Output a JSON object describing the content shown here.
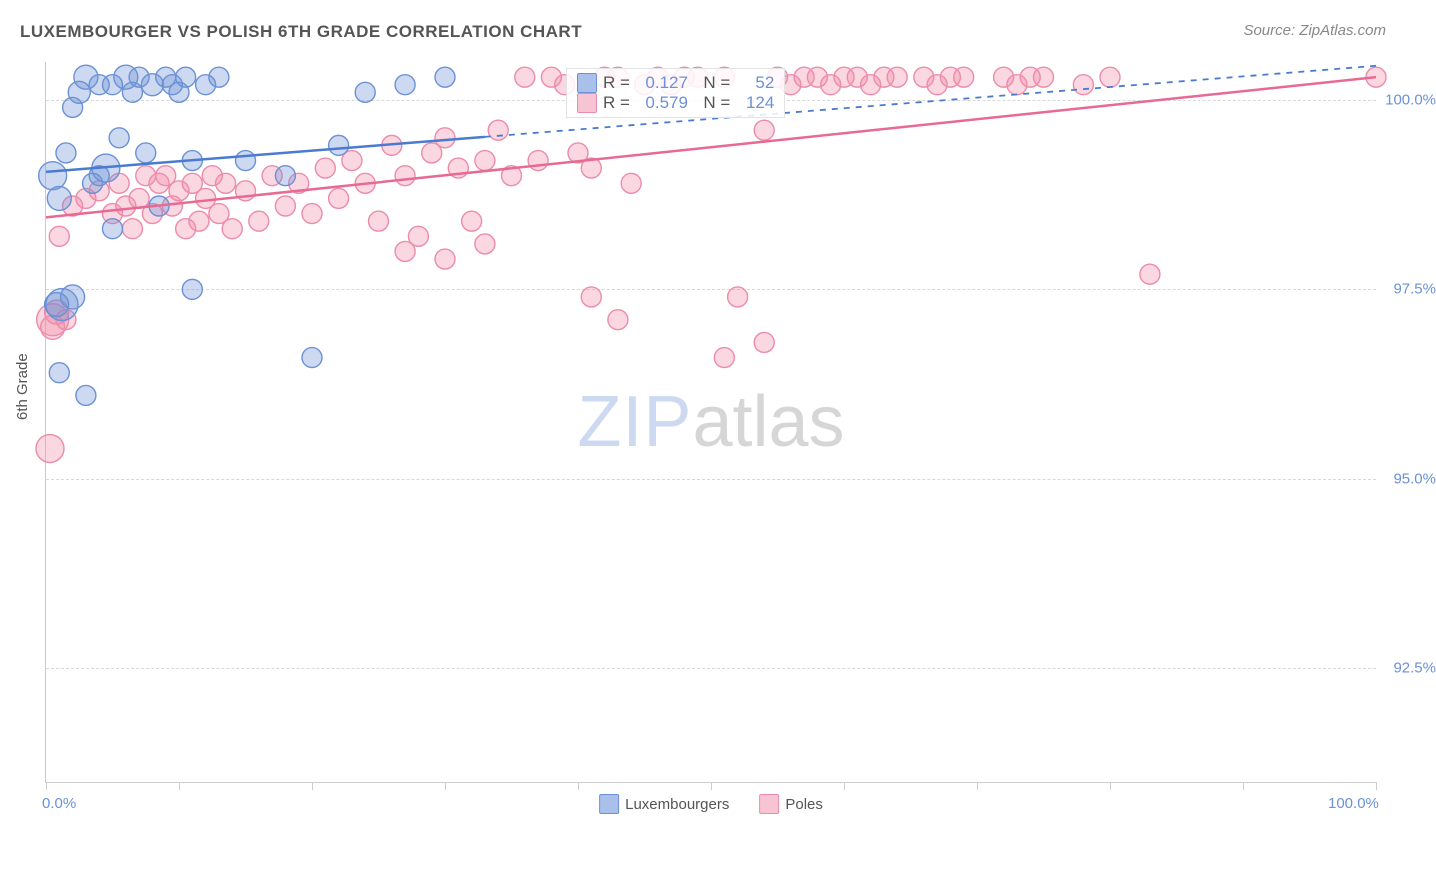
{
  "title": "LUXEMBOURGER VS POLISH 6TH GRADE CORRELATION CHART",
  "source": "Source: ZipAtlas.com",
  "ylabel": "6th Grade",
  "watermark_zip": "ZIP",
  "watermark_atlas": "atlas",
  "chart": {
    "type": "scatter",
    "background_color": "#ffffff",
    "grid_color": "#d8d8d8",
    "axis_color": "#cccccc",
    "tick_label_color": "#6b91d6",
    "xlim": [
      0,
      100
    ],
    "ylim": [
      91,
      100.5
    ],
    "xticks": [
      0,
      10,
      20,
      30,
      40,
      50,
      60,
      70,
      80,
      90,
      100
    ],
    "xtick_labels": {
      "0": "0.0%",
      "100": "100.0%"
    },
    "yticks": [
      92.5,
      95.0,
      97.5,
      100.0
    ],
    "ytick_labels": [
      "92.5%",
      "95.0%",
      "97.5%",
      "100.0%"
    ],
    "series": [
      {
        "name": "Luxembourgers",
        "label": "Luxembourgers",
        "color_fill": "rgba(109,146,213,0.35)",
        "color_stroke": "#6b91d6",
        "swatch_fill": "#a9c1ea",
        "swatch_border": "#6b91d6",
        "radius": 10,
        "R": "0.127",
        "N": "52",
        "trend": {
          "x1": 0,
          "y1": 99.05,
          "x2": 100,
          "y2": 100.45,
          "solid_until_x": 33,
          "stroke": "#4a7bd0",
          "width": 2.5
        },
        "points": [
          [
            0.5,
            99.0,
            14
          ],
          [
            1,
            98.7,
            12
          ],
          [
            1.5,
            99.3,
            10
          ],
          [
            2,
            99.9,
            10
          ],
          [
            2.5,
            100.1,
            11
          ],
          [
            3,
            100.3,
            12
          ],
          [
            3.5,
            98.9,
            10
          ],
          [
            4,
            100.2,
            10
          ],
          [
            4,
            99.0,
            10
          ],
          [
            4.5,
            99.1,
            14
          ],
          [
            5,
            100.2,
            10
          ],
          [
            5.5,
            99.5,
            10
          ],
          [
            6,
            100.3,
            12
          ],
          [
            6.5,
            100.1,
            10
          ],
          [
            7,
            100.3,
            10
          ],
          [
            7.5,
            99.3,
            10
          ],
          [
            8,
            100.2,
            11
          ],
          [
            8.5,
            98.6,
            10
          ],
          [
            9,
            100.3,
            10
          ],
          [
            9.5,
            100.2,
            10
          ],
          [
            10,
            100.1,
            10
          ],
          [
            10.5,
            100.3,
            10
          ],
          [
            11,
            99.2,
            10
          ],
          [
            12,
            100.2,
            10
          ],
          [
            13,
            100.3,
            10
          ],
          [
            0.8,
            97.3,
            12
          ],
          [
            1,
            96.4,
            10
          ],
          [
            1.2,
            97.3,
            16
          ],
          [
            2,
            97.4,
            12
          ],
          [
            11,
            97.5,
            10
          ],
          [
            3,
            96.1,
            10
          ],
          [
            20,
            96.6,
            10
          ],
          [
            5,
            98.3,
            10
          ],
          [
            22,
            99.4,
            10
          ],
          [
            24,
            100.1,
            10
          ],
          [
            27,
            100.2,
            10
          ],
          [
            30,
            100.3,
            10
          ],
          [
            18,
            99.0,
            10
          ],
          [
            15,
            99.2,
            10
          ]
        ]
      },
      {
        "name": "Poles",
        "label": "Poles",
        "color_fill": "rgba(240,140,170,0.35)",
        "color_stroke": "#ec8bab",
        "swatch_fill": "#f7c4d4",
        "swatch_border": "#ec8bab",
        "radius": 10,
        "R": "0.579",
        "N": "124",
        "trend": {
          "x1": 0,
          "y1": 98.45,
          "x2": 100,
          "y2": 100.3,
          "solid_until_x": 100,
          "stroke": "#e76a95",
          "width": 2.5
        },
        "points": [
          [
            0.3,
            95.4,
            14
          ],
          [
            0.5,
            97.1,
            16
          ],
          [
            0.5,
            97.0,
            12
          ],
          [
            1,
            98.2,
            10
          ],
          [
            1.5,
            97.1,
            10
          ],
          [
            0.8,
            97.2,
            12
          ],
          [
            2,
            98.6,
            10
          ],
          [
            3,
            98.7,
            10
          ],
          [
            4,
            98.8,
            10
          ],
          [
            5,
            98.5,
            10
          ],
          [
            5.5,
            98.9,
            10
          ],
          [
            6,
            98.6,
            10
          ],
          [
            6.5,
            98.3,
            10
          ],
          [
            7,
            98.7,
            10
          ],
          [
            7.5,
            99.0,
            10
          ],
          [
            8,
            98.5,
            10
          ],
          [
            8.5,
            98.9,
            10
          ],
          [
            9,
            99.0,
            10
          ],
          [
            9.5,
            98.6,
            10
          ],
          [
            10,
            98.8,
            10
          ],
          [
            10.5,
            98.3,
            10
          ],
          [
            11,
            98.9,
            10
          ],
          [
            11.5,
            98.4,
            10
          ],
          [
            12,
            98.7,
            10
          ],
          [
            12.5,
            99.0,
            10
          ],
          [
            13,
            98.5,
            10
          ],
          [
            13.5,
            98.9,
            10
          ],
          [
            14,
            98.3,
            10
          ],
          [
            15,
            98.8,
            10
          ],
          [
            16,
            98.4,
            10
          ],
          [
            17,
            99.0,
            10
          ],
          [
            18,
            98.6,
            10
          ],
          [
            19,
            98.9,
            10
          ],
          [
            20,
            98.5,
            10
          ],
          [
            21,
            99.1,
            10
          ],
          [
            22,
            98.7,
            10
          ],
          [
            23,
            99.2,
            10
          ],
          [
            24,
            98.9,
            10
          ],
          [
            25,
            98.4,
            10
          ],
          [
            26,
            99.4,
            10
          ],
          [
            27,
            99.0,
            10
          ],
          [
            28,
            98.2,
            10
          ],
          [
            29,
            99.3,
            10
          ],
          [
            30,
            99.5,
            10
          ],
          [
            31,
            99.1,
            10
          ],
          [
            32,
            98.4,
            10
          ],
          [
            33,
            99.2,
            10
          ],
          [
            34,
            99.6,
            10
          ],
          [
            35,
            99.0,
            10
          ],
          [
            36,
            100.3,
            10
          ],
          [
            37,
            99.2,
            10
          ],
          [
            38,
            100.3,
            10
          ],
          [
            39,
            100.2,
            10
          ],
          [
            40,
            99.3,
            10
          ],
          [
            41,
            99.1,
            10
          ],
          [
            42,
            100.3,
            10
          ],
          [
            43,
            100.3,
            10
          ],
          [
            44,
            98.9,
            10
          ],
          [
            45,
            100.2,
            10
          ],
          [
            46,
            100.3,
            10
          ],
          [
            47,
            100.2,
            10
          ],
          [
            48,
            100.3,
            10
          ],
          [
            49,
            100.3,
            10
          ],
          [
            51,
            100.3,
            10
          ],
          [
            54,
            99.6,
            10
          ],
          [
            55,
            100.3,
            10
          ],
          [
            56,
            100.2,
            10
          ],
          [
            57,
            100.3,
            10
          ],
          [
            58,
            100.3,
            10
          ],
          [
            59,
            100.2,
            10
          ],
          [
            60,
            100.3,
            10
          ],
          [
            61,
            100.3,
            10
          ],
          [
            62,
            100.2,
            10
          ],
          [
            63,
            100.3,
            10
          ],
          [
            64,
            100.3,
            10
          ],
          [
            66,
            100.3,
            10
          ],
          [
            67,
            100.2,
            10
          ],
          [
            68,
            100.3,
            10
          ],
          [
            72,
            100.3,
            10
          ],
          [
            73,
            100.2,
            10
          ],
          [
            74,
            100.3,
            10
          ],
          [
            75,
            100.3,
            10
          ],
          [
            78,
            100.2,
            10
          ],
          [
            80,
            100.3,
            10
          ],
          [
            100,
            100.3,
            10
          ],
          [
            41,
            97.4,
            10
          ],
          [
            43,
            97.1,
            10
          ],
          [
            52,
            97.4,
            10
          ],
          [
            54,
            96.8,
            10
          ],
          [
            69,
            100.3,
            10
          ],
          [
            51,
            96.6,
            10
          ],
          [
            33,
            98.1,
            10
          ],
          [
            27,
            98.0,
            10
          ],
          [
            30,
            97.9,
            10
          ],
          [
            83,
            97.7,
            10
          ]
        ]
      }
    ]
  }
}
